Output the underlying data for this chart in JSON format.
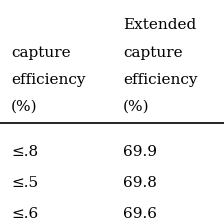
{
  "col1_header": [
    "capture",
    "efficiency",
    "(%)"
  ],
  "col2_header": [
    "Extended",
    "capture",
    "efficiency",
    "(%)"
  ],
  "col1_partial": [
    ".8",
    ".5",
    ".6"
  ],
  "col2_values": [
    "69.9",
    "69.8",
    "69.6"
  ],
  "col1_prefix": "≤",
  "background_color": "#ffffff",
  "text_color": "#000000",
  "font_size": 11,
  "header_font_size": 11
}
